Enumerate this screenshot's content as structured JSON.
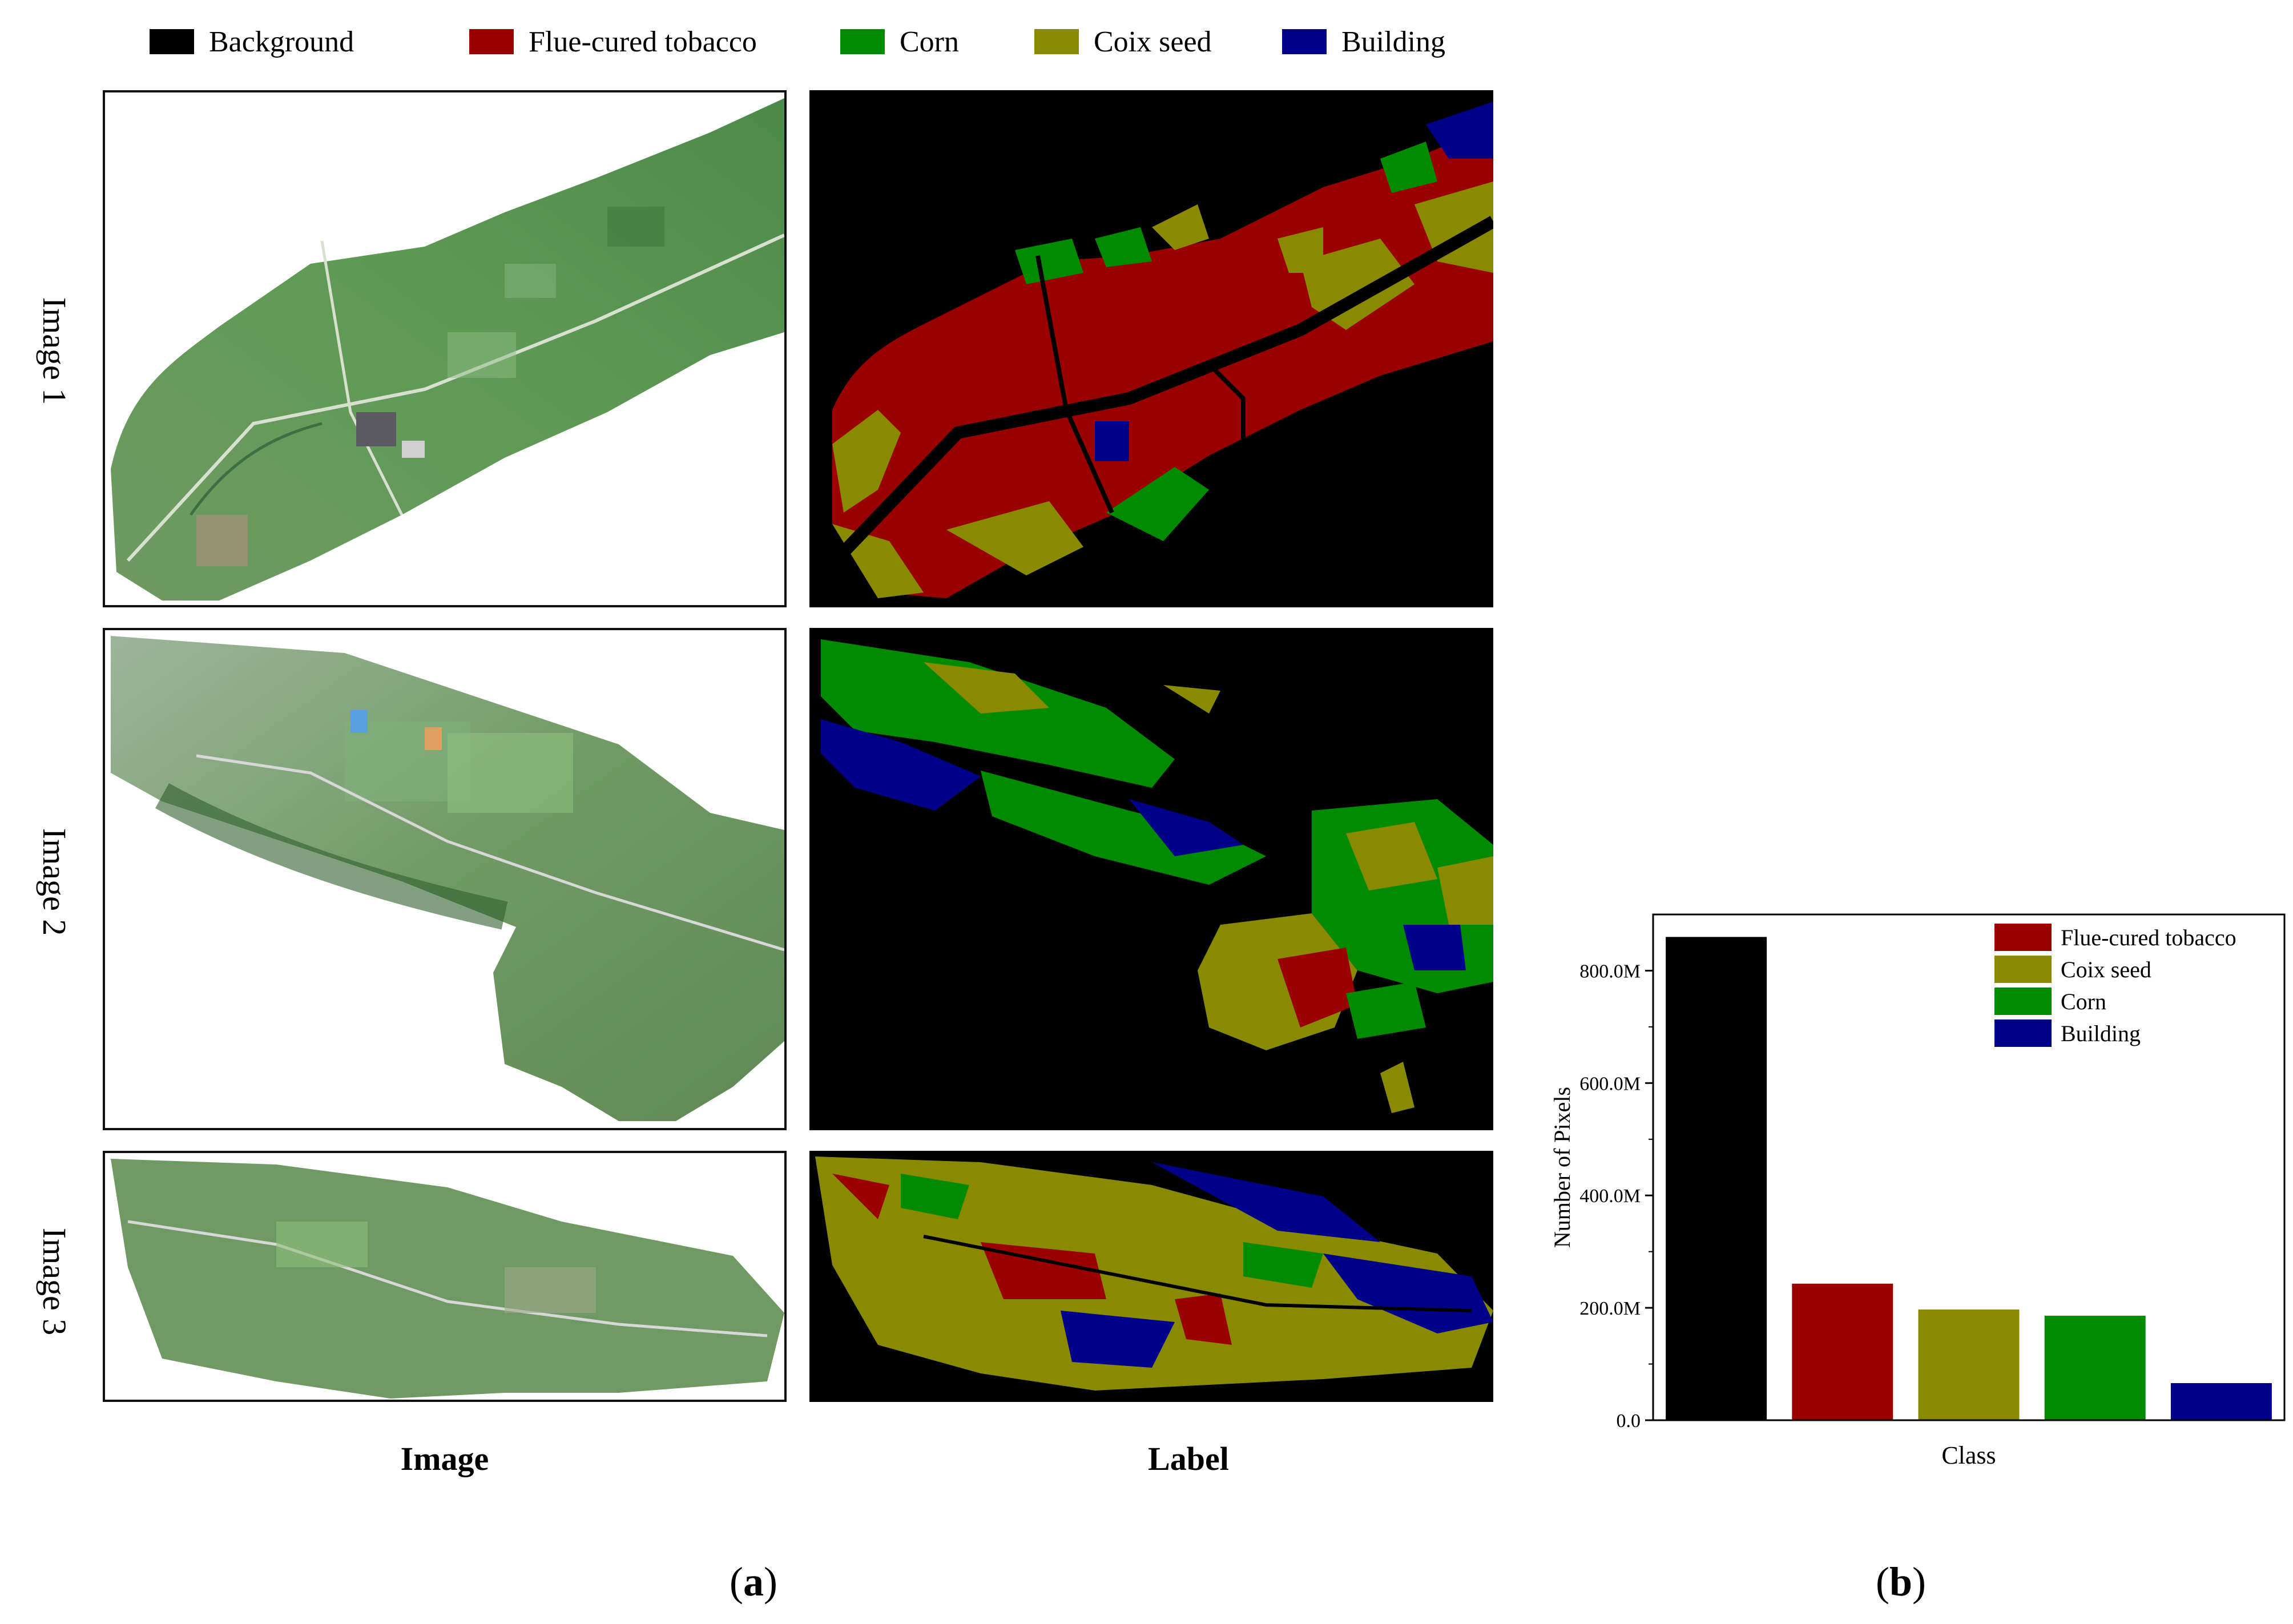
{
  "top_legend": {
    "items": [
      {
        "label": "Background",
        "color": "#000000"
      },
      {
        "label": "Flue-cured tobacco",
        "color": "#9b0000"
      },
      {
        "label": "Corn",
        "color": "#008a00"
      },
      {
        "label": "Coix seed",
        "color": "#8a8a00"
      },
      {
        "label": "Building",
        "color": "#000088"
      }
    ]
  },
  "panel_a": {
    "rows": [
      "Image 1",
      "Image 2",
      "Image 3"
    ],
    "columns": [
      "Image",
      "Label"
    ],
    "sublabel_open": "(",
    "sublabel_letter": "a",
    "sublabel_close": ")"
  },
  "panel_b": {
    "sublabel_open": "(",
    "sublabel_letter": "b",
    "sublabel_close": ")"
  },
  "chart_data": {
    "type": "bar",
    "categories": [
      "Background",
      "Flue-cured tobacco",
      "Coix seed",
      "Corn",
      "Building"
    ],
    "values": [
      860,
      243,
      197,
      186,
      66
    ],
    "colors": [
      "#000000",
      "#9b0000",
      "#8a8a00",
      "#008a00",
      "#000088"
    ],
    "value_unit": "M",
    "xlabel": "Class",
    "ylabel": "Number of Pixels",
    "ylim": [
      0,
      900
    ],
    "yticks": [
      0,
      200,
      400,
      600,
      800
    ],
    "ytick_labels": [
      "0.0",
      "200.0M",
      "400.0M",
      "600.0M",
      "800.0M"
    ],
    "legend": {
      "placement": "top-right",
      "entries": [
        {
          "label": "Flue-cured tobacco",
          "color": "#9b0000"
        },
        {
          "label": "Coix seed",
          "color": "#8a8a00"
        },
        {
          "label": "Corn",
          "color": "#008a00"
        },
        {
          "label": "Building",
          "color": "#000088"
        }
      ]
    }
  }
}
